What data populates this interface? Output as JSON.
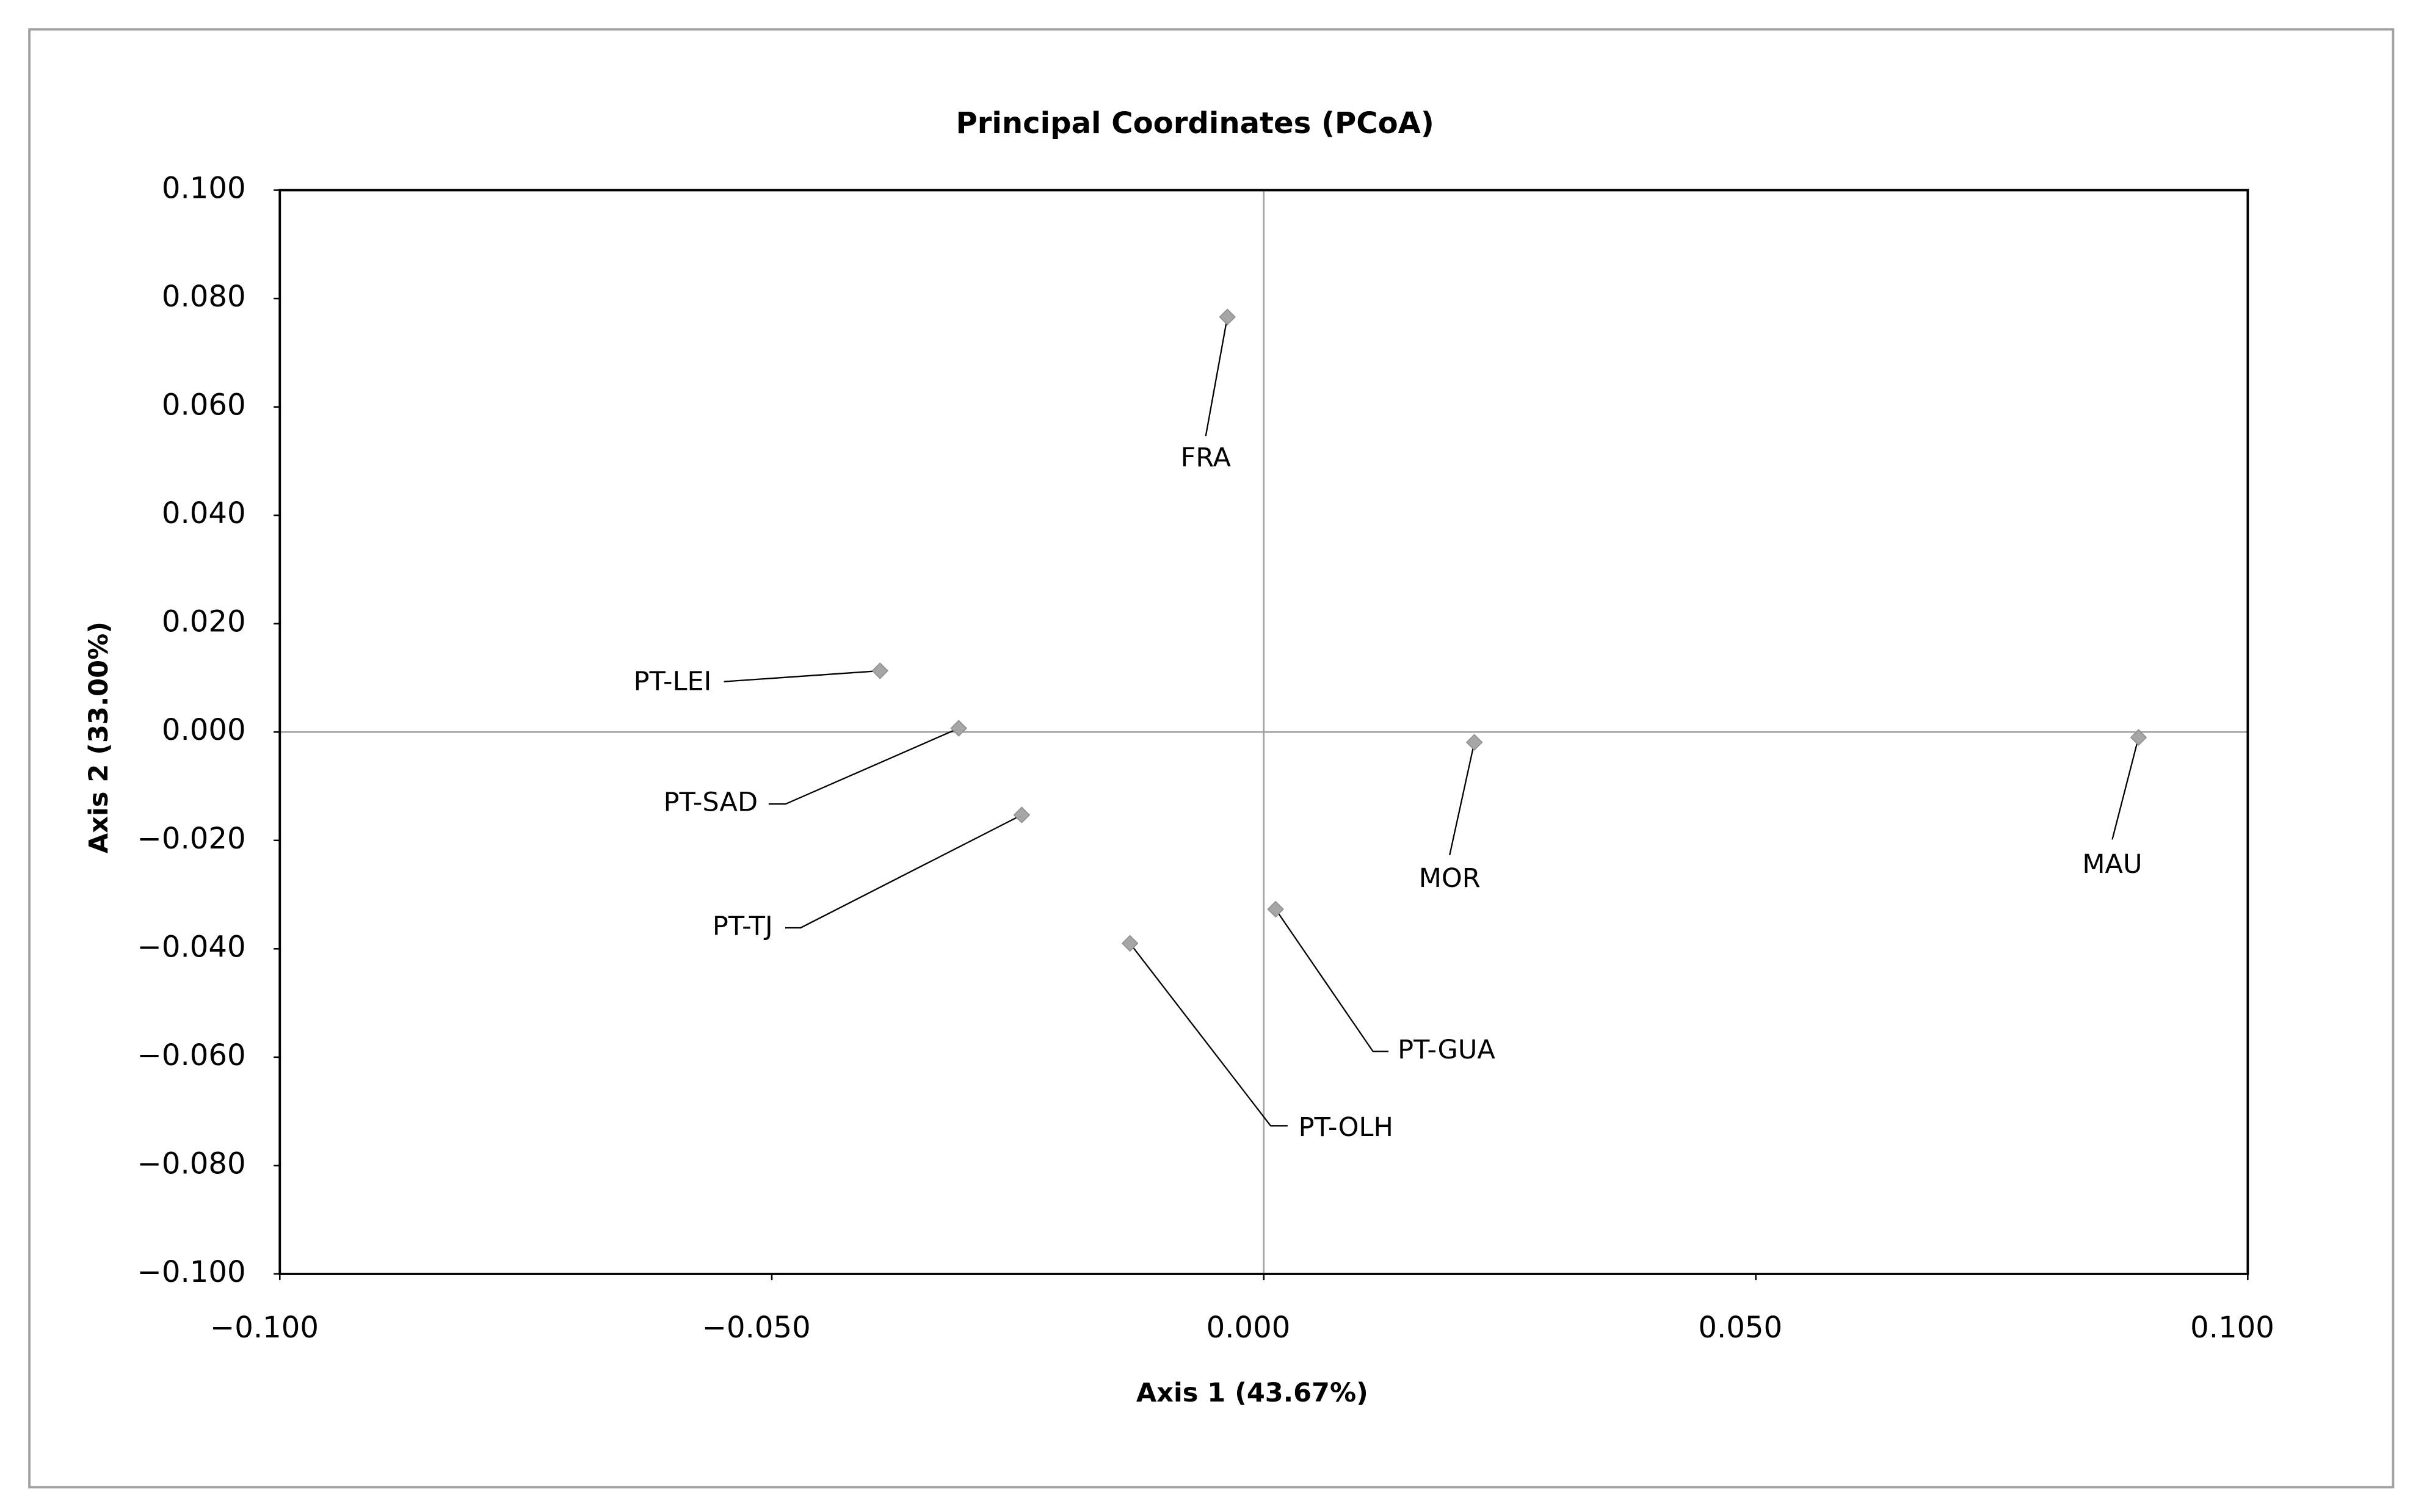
{
  "chart_data": {
    "type": "scatter",
    "title": "Principal Coordinates (PCoA)",
    "xlabel": "Axis 1 (43.67%)",
    "ylabel": "Axis 2 (33.00%)",
    "labels": [
      "FRA",
      "PT-LEI",
      "PT-SAD",
      "PT-TJ",
      "PT-OLH",
      "PT-GUA",
      "MOR",
      "MAU"
    ],
    "x": [
      -0.0037,
      -0.039,
      -0.031,
      -0.0246,
      -0.0136,
      0.0012,
      0.0214,
      0.0889
    ],
    "y": [
      0.0766,
      0.0113,
      0.0007,
      -0.0153,
      -0.039,
      -0.0327,
      -0.0019,
      -0.001
    ],
    "color": "#a6a6a6",
    "xlim": [
      -0.1,
      0.1
    ],
    "ylim": [
      -0.1,
      0.1
    ],
    "xticks": [
      {
        "value": -0.1,
        "label": "−0.100"
      },
      {
        "value": -0.05,
        "label": "−0.050"
      },
      {
        "value": 0,
        "label": "0.000"
      },
      {
        "value": 0.05,
        "label": "0.050"
      },
      {
        "value": 0.1,
        "label": "0.100"
      }
    ],
    "yticks": [
      {
        "value": -0.1,
        "label": "−0.100"
      },
      {
        "value": -0.08,
        "label": "−0.080"
      },
      {
        "value": -0.06,
        "label": "−0.060"
      },
      {
        "value": -0.04,
        "label": "−0.040"
      },
      {
        "value": -0.02,
        "label": "−0.020"
      },
      {
        "value": 0,
        "label": "0.000"
      },
      {
        "value": 0.02,
        "label": "0.020"
      },
      {
        "value": 0.04,
        "label": "0.040"
      },
      {
        "value": 0.06,
        "label": "0.060"
      },
      {
        "value": 0.08,
        "label": "0.080"
      },
      {
        "value": 0.1,
        "label": "0.100"
      }
    ]
  }
}
